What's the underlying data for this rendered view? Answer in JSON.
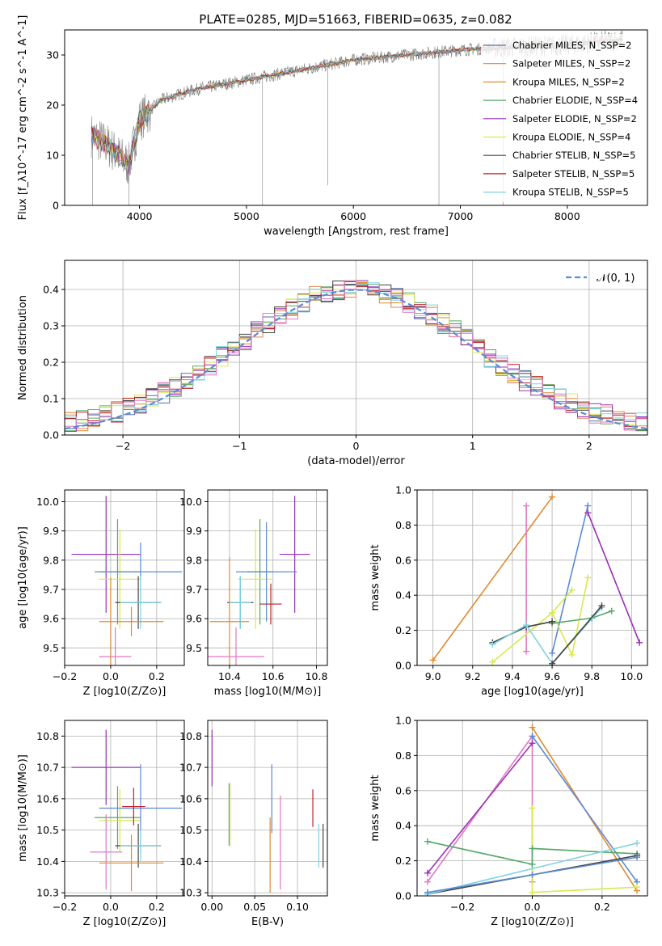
{
  "colors": {
    "Chabrier MILES": "#4c72b0",
    "Salpeter MILES": "#dd8452",
    "Kroupa MILES": "#e08a2c",
    "Chabrier ELODIE": "#55a868",
    "Salpeter ELODIE": "#9b30b8",
    "Kroupa ELODIE": "#d9e850",
    "Chabrier STELIB": "#444444",
    "Salpeter STELIB": "#c0202a",
    "Kroupa STELIB": "#7fd3e0"
  },
  "chart_data": [
    {
      "id": "spectrum",
      "type": "line",
      "title": "PLATE=0285, MJD=51663, FIBERID=0635, z=0.082",
      "xlabel": "wavelength [Angstrom, rest frame]",
      "ylabel": "Flux [f_λ10^-17 erg cm^-2 s^-1 A^-1]",
      "xlim": [
        3300,
        8750
      ],
      "ylim": [
        0,
        35
      ],
      "xticks": [
        4000,
        5000,
        6000,
        7000,
        8000
      ],
      "yticks": [
        0,
        10,
        20,
        30
      ],
      "legend_position": "right",
      "legend": [
        {
          "label": "Chabrier MILES, N_SSP=2",
          "color": "#4c72b0"
        },
        {
          "label": "Salpeter MILES, N_SSP=2",
          "color": "#dd8452"
        },
        {
          "label": "Kroupa MILES, N_SSP=2",
          "color": "#e08a2c"
        },
        {
          "label": "Chabrier ELODIE, N_SSP=4",
          "color": "#55a868"
        },
        {
          "label": "Salpeter ELODIE, N_SSP=2",
          "color": "#9b30b8"
        },
        {
          "label": "Kroupa ELODIE, N_SSP=4",
          "color": "#d9e850"
        },
        {
          "label": "Chabrier STELIB, N_SSP=5",
          "color": "#444444"
        },
        {
          "label": "Salpeter STELIB, N_SSP=5",
          "color": "#c0202a"
        },
        {
          "label": "Kroupa STELIB, N_SSP=5",
          "color": "#7fd3e0"
        }
      ],
      "continuum": [
        [
          3550,
          14
        ],
        [
          3700,
          12
        ],
        [
          3800,
          10
        ],
        [
          3900,
          8
        ],
        [
          4000,
          17
        ],
        [
          4200,
          21
        ],
        [
          4500,
          23
        ],
        [
          5000,
          25
        ],
        [
          5500,
          27
        ],
        [
          6000,
          29
        ],
        [
          6500,
          30
        ],
        [
          7000,
          31
        ],
        [
          7400,
          31.5
        ],
        [
          8000,
          32
        ],
        [
          8500,
          33
        ]
      ]
    },
    {
      "id": "residuals",
      "type": "line",
      "xlabel": "(data-model)/error",
      "ylabel": "Normed distribution",
      "xlim": [
        -2.5,
        2.5
      ],
      "ylim": [
        0,
        0.48
      ],
      "xticks": [
        -2,
        -1,
        0,
        1,
        2
      ],
      "yticks": [
        0.0,
        0.1,
        0.2,
        0.3,
        0.4
      ],
      "legend": [
        {
          "label": "N(0,1)",
          "color": "#5b8bd6"
        }
      ],
      "legend_position": "upper right"
    },
    {
      "id": "age_vs_Z",
      "type": "scatter",
      "xlabel": "Z [log10(Z/Z⊙)]",
      "ylabel": "age  [log10(age/yr)]",
      "xlim": [
        -0.2,
        0.32
      ],
      "ylim": [
        9.44,
        10.04
      ],
      "xticks": [
        -0.2,
        0.0,
        0.2
      ],
      "yticks": [
        9.5,
        9.6,
        9.7,
        9.8,
        9.9,
        10.0
      ],
      "points": [
        {
          "x": -0.02,
          "y": 9.82,
          "xerr": 0.15,
          "yerr": 0.2,
          "color": "#9b30b8"
        },
        {
          "x": 0.03,
          "y": 9.76,
          "xerr": 0.1,
          "yerr": 0.18,
          "color": "#55a868"
        },
        {
          "x": 0.04,
          "y": 9.735,
          "xerr": 0.09,
          "yerr": 0.17,
          "color": "#d9e850"
        },
        {
          "x": 0.13,
          "y": 9.76,
          "xerr": 0.18,
          "yerr": 0.1,
          "color": "#5b8bd6"
        },
        {
          "x": 0.12,
          "y": 9.655,
          "xerr": 0.1,
          "yerr": 0.09,
          "color": "#444444"
        },
        {
          "x": 0.13,
          "y": 9.655,
          "xerr": 0.09,
          "yerr": 0.09,
          "color": "#7fd3e0"
        },
        {
          "x": 0.09,
          "y": 9.59,
          "xerr": 0.14,
          "yerr": 0.05,
          "color": "#e08a2c"
        },
        {
          "x": 0.02,
          "y": 9.47,
          "xerr": 0.07,
          "yerr": 0.1,
          "color": "#e377c2"
        },
        {
          "x": 0.0,
          "y": 9.59,
          "xerr": 0.0,
          "yerr": 0.15,
          "color": "#e08a2c"
        }
      ]
    },
    {
      "id": "age_vs_mass",
      "type": "scatter",
      "xlabel": "mass [log10(M/M⊙)]",
      "ylabel": "",
      "xlim": [
        10.3,
        10.85
      ],
      "ylim": [
        9.44,
        10.04
      ],
      "xticks": [
        10.4,
        10.6,
        10.8
      ],
      "yticks": [
        9.5,
        9.6,
        9.7,
        9.8,
        9.9,
        10.0
      ],
      "points": [
        {
          "x": 10.7,
          "y": 9.82,
          "xerr": 0.07,
          "yerr": 0.2,
          "color": "#9b30b8"
        },
        {
          "x": 10.54,
          "y": 9.76,
          "xerr": 0.06,
          "yerr": 0.18,
          "color": "#55a868"
        },
        {
          "x": 10.52,
          "y": 9.735,
          "xerr": 0.08,
          "yerr": 0.17,
          "color": "#d9e850"
        },
        {
          "x": 10.57,
          "y": 9.76,
          "xerr": 0.14,
          "yerr": 0.17,
          "color": "#5b8bd6"
        },
        {
          "x": 10.45,
          "y": 9.655,
          "xerr": 0.06,
          "yerr": 0.09,
          "color": "#444444"
        },
        {
          "x": 10.45,
          "y": 9.655,
          "xerr": 0.05,
          "yerr": 0.09,
          "color": "#7fd3e0"
        },
        {
          "x": 10.4,
          "y": 9.59,
          "xerr": 0.09,
          "yerr": 0.22,
          "color": "#e08a2c"
        },
        {
          "x": 10.43,
          "y": 9.47,
          "xerr": 0.13,
          "yerr": 0.1,
          "color": "#e377c2"
        },
        {
          "x": 10.59,
          "y": 9.65,
          "xerr": 0.05,
          "yerr": 0.07,
          "color": "#c0202a"
        }
      ]
    },
    {
      "id": "weight_vs_age",
      "type": "line",
      "xlabel": "age  [log10(age/yr)]",
      "ylabel": "mass weight",
      "xlim": [
        8.92,
        10.08
      ],
      "ylim": [
        0,
        1
      ],
      "xticks": [
        9.0,
        9.2,
        9.4,
        9.6,
        9.8,
        10.0
      ],
      "yticks": [
        0.0,
        0.2,
        0.4,
        0.6,
        0.8,
        1.0
      ],
      "series": [
        {
          "color": "#e08a2c",
          "x": [
            9.0,
            9.6
          ],
          "y": [
            0.03,
            0.96
          ]
        },
        {
          "color": "#e377c2",
          "x": [
            9.47,
            9.47
          ],
          "y": [
            0.08,
            0.91
          ]
        },
        {
          "color": "#5b8bd6",
          "x": [
            9.6,
            9.78
          ],
          "y": [
            0.07,
            0.91
          ]
        },
        {
          "color": "#9b30b8",
          "x": [
            9.78,
            10.04
          ],
          "y": [
            0.87,
            0.13
          ]
        },
        {
          "color": "#d9e850",
          "x": [
            9.3,
            9.6,
            9.7,
            9.78
          ],
          "y": [
            0.02,
            0.3,
            0.06,
            0.5
          ]
        },
        {
          "color": "#d9e850",
          "x": [
            9.6,
            9.7
          ],
          "y": [
            0.3,
            0.43
          ]
        },
        {
          "color": "#55a868",
          "x": [
            9.6,
            9.8,
            9.9
          ],
          "y": [
            0.24,
            0.27,
            0.31
          ]
        },
        {
          "color": "#444444",
          "x": [
            9.3,
            9.47,
            9.6
          ],
          "y": [
            0.13,
            0.22,
            0.25
          ]
        },
        {
          "color": "#7fd3e0",
          "x": [
            9.3,
            9.47,
            9.6,
            9.85
          ],
          "y": [
            0.12,
            0.23,
            0.01,
            0.33
          ]
        },
        {
          "color": "#444444",
          "x": [
            9.6,
            9.85
          ],
          "y": [
            0.01,
            0.34
          ]
        }
      ]
    },
    {
      "id": "mass_vs_Z",
      "type": "scatter",
      "xlabel": "Z [log10(Z/Z⊙)]",
      "ylabel": "mass [log10(M/M⊙)]",
      "xlim": [
        -0.2,
        0.32
      ],
      "ylim": [
        10.29,
        10.85
      ],
      "xticks": [
        -0.2,
        0.0,
        0.2
      ],
      "yticks": [
        10.3,
        10.4,
        10.5,
        10.6,
        10.7,
        10.8
      ],
      "points": [
        {
          "x": -0.02,
          "y": 10.7,
          "xerr": 0.15,
          "yerr": 0.12,
          "color": "#9b30b8"
        },
        {
          "x": 0.03,
          "y": 10.54,
          "xerr": 0.1,
          "yerr": 0.1,
          "color": "#55a868"
        },
        {
          "x": 0.04,
          "y": 10.53,
          "xerr": 0.09,
          "yerr": 0.1,
          "color": "#d9e850"
        },
        {
          "x": 0.13,
          "y": 10.57,
          "xerr": 0.18,
          "yerr": 0.14,
          "color": "#5b8bd6"
        },
        {
          "x": 0.12,
          "y": 10.45,
          "xerr": 0.1,
          "yerr": 0.07,
          "color": "#444444"
        },
        {
          "x": 0.13,
          "y": 10.45,
          "xerr": 0.09,
          "yerr": 0.05,
          "color": "#7fd3e0"
        },
        {
          "x": 0.09,
          "y": 10.395,
          "xerr": 0.14,
          "yerr": 0.09,
          "color": "#e08a2c"
        },
        {
          "x": -0.02,
          "y": 10.43,
          "xerr": 0.07,
          "yerr": 0.12,
          "color": "#e377c2"
        },
        {
          "x": 0.1,
          "y": 10.575,
          "xerr": 0.05,
          "yerr": 0.06,
          "color": "#c0202a"
        }
      ]
    },
    {
      "id": "mass_vs_ebv",
      "type": "scatter",
      "xlabel": "E(B-V)",
      "ylabel": "",
      "xlim": [
        -0.005,
        0.135
      ],
      "ylim": [
        10.29,
        10.85
      ],
      "xticks": [
        0.0,
        0.05,
        0.1
      ],
      "yticks": [
        10.3,
        10.4,
        10.5,
        10.6,
        10.7,
        10.8
      ],
      "points": [
        {
          "x": 0.0,
          "y": 10.73,
          "yerr": 0.09,
          "color": "#9b30b8"
        },
        {
          "x": 0.02,
          "y": 10.55,
          "yerr": 0.1,
          "color": "#55a868"
        },
        {
          "x": 0.021,
          "y": 10.55,
          "yerr": 0.1,
          "color": "#d9e850"
        },
        {
          "x": 0.07,
          "y": 10.6,
          "yerr": 0.11,
          "color": "#5b8bd6"
        },
        {
          "x": 0.068,
          "y": 10.42,
          "yerr": 0.12,
          "color": "#e08a2c"
        },
        {
          "x": 0.08,
          "y": 10.46,
          "yerr": 0.15,
          "color": "#e377c2"
        },
        {
          "x": 0.118,
          "y": 10.57,
          "yerr": 0.06,
          "color": "#c0202a"
        },
        {
          "x": 0.125,
          "y": 10.45,
          "yerr": 0.07,
          "color": "#7fd3e0"
        },
        {
          "x": 0.13,
          "y": 10.45,
          "yerr": 0.07,
          "color": "#444444"
        }
      ]
    },
    {
      "id": "weight_vs_Z",
      "type": "line",
      "xlabel": "Z [log10(Z/Z⊙)]",
      "ylabel": "mass weight",
      "xlim": [
        -0.33,
        0.33
      ],
      "ylim": [
        0,
        1
      ],
      "xticks": [
        -0.2,
        0.0,
        0.2
      ],
      "yticks": [
        0.0,
        0.2,
        0.4,
        0.6,
        0.8,
        1.0
      ],
      "series": [
        {
          "color": "#e08a2c",
          "x": [
            0.0,
            0.3
          ],
          "y": [
            0.96,
            0.03
          ]
        },
        {
          "color": "#e377c2",
          "x": [
            0.0,
            0.0
          ],
          "y": [
            0.08,
            0.91
          ]
        },
        {
          "color": "#e377c2",
          "x": [
            -0.3,
            0.0
          ],
          "y": [
            0.08,
            0.91
          ]
        },
        {
          "color": "#5b8bd6",
          "x": [
            0.0,
            0.3
          ],
          "y": [
            0.91,
            0.08
          ]
        },
        {
          "color": "#9b30b8",
          "x": [
            -0.3,
            0.0
          ],
          "y": [
            0.13,
            0.87
          ]
        },
        {
          "color": "#d9e850",
          "x": [
            0.0,
            0.3
          ],
          "y": [
            0.02,
            0.05
          ]
        },
        {
          "color": "#d9e850",
          "x": [
            0.0,
            0.0
          ],
          "y": [
            0.02,
            0.5
          ]
        },
        {
          "color": "#55a868",
          "x": [
            -0.3,
            0.0,
            0.0,
            0.3
          ],
          "y": [
            0.31,
            0.18,
            0.27,
            0.24
          ]
        },
        {
          "color": "#444444",
          "x": [
            -0.3,
            0.3
          ],
          "y": [
            0.01,
            0.23
          ]
        },
        {
          "color": "#7fd3e0",
          "x": [
            -0.3,
            0.3
          ],
          "y": [
            0.01,
            0.3
          ]
        },
        {
          "color": "#5b8bd6",
          "x": [
            -0.3,
            0.0,
            0.3
          ],
          "y": [
            0.02,
            0.12,
            0.22
          ]
        }
      ]
    }
  ]
}
